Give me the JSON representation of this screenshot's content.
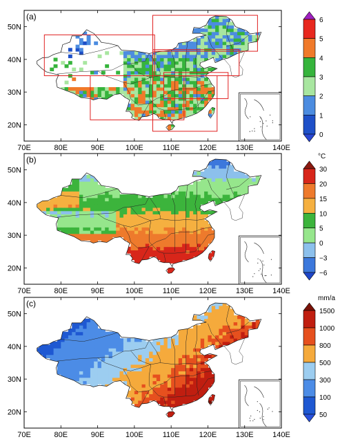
{
  "panels": [
    {
      "id": "a",
      "label": "(a)",
      "unit": "",
      "x_ticks": [
        "70E",
        "80E",
        "90E",
        "100E",
        "110E",
        "120E",
        "130E",
        "140E"
      ],
      "y_ticks": [
        "20N",
        "30N",
        "40N",
        "50N"
      ],
      "colorbar": {
        "labels": [
          "6",
          "5",
          "4",
          "3",
          "2",
          "1",
          "0"
        ],
        "colors": [
          "#a020c0",
          "#e8281e",
          "#f07a2a",
          "#36b43c",
          "#a8e6a0",
          "#4c8ce0",
          "#1e50c8",
          "#2846d2"
        ]
      },
      "regions_boxes": 6
    },
    {
      "id": "b",
      "label": "(b)",
      "unit": "°C",
      "x_ticks": [
        "70E",
        "80E",
        "90E",
        "100E",
        "110E",
        "120E",
        "130E",
        "140E"
      ],
      "y_ticks": [
        "20N",
        "30N",
        "40N",
        "50N"
      ],
      "colorbar": {
        "labels": [
          "30",
          "20",
          "15",
          "10",
          "5",
          "0",
          "−3",
          "−6"
        ],
        "colors": [
          "#8c1a10",
          "#d8261a",
          "#ee7a2c",
          "#f5b040",
          "#3cb43c",
          "#96e68c",
          "#8cc0ec",
          "#3c78dc",
          "#1e46c8"
        ]
      }
    },
    {
      "id": "c",
      "label": "(c)",
      "unit": "mm/a",
      "x_ticks": [
        "70E",
        "80E",
        "90E",
        "100E",
        "110E",
        "120E",
        "130E",
        "140E"
      ],
      "y_ticks": [
        "20N",
        "30N",
        "40N",
        "50N"
      ],
      "colorbar": {
        "labels": [
          "1500",
          "1000",
          "800",
          "500",
          "300",
          "100",
          "50"
        ],
        "colors": [
          "#7a1208",
          "#c01e10",
          "#e6501e",
          "#f5aa3c",
          "#9ccdf0",
          "#4c8ce6",
          "#1e58d2",
          "#2850dc"
        ]
      }
    }
  ]
}
